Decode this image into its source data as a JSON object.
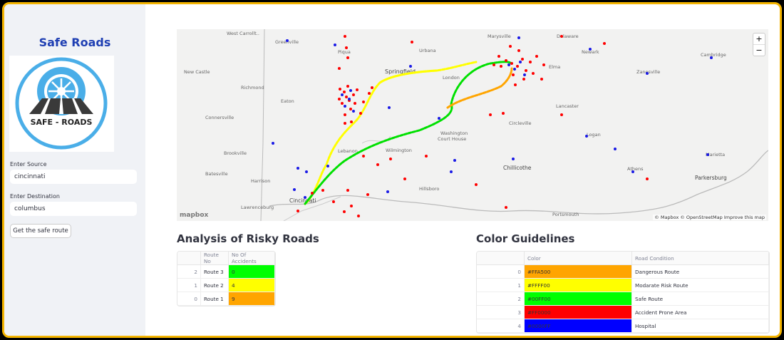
{
  "sidebar": {
    "title": "Safe Roads",
    "logo_text": "SAFE - ROADS",
    "source_label": "Enter Source",
    "source_value": "cincinnati",
    "destination_label": "Enter Destination",
    "destination_value": "columbus",
    "button_label": "Get the safe route"
  },
  "map": {
    "zoom_in": "+",
    "zoom_out": "−",
    "attribution": "© Mapbox © OpenStreetMap  Improve this map",
    "logo": "mapbox",
    "places": {
      "wc": "West Carrollt..",
      "greenville": "Greenville",
      "piqua": "Piqua",
      "urbana": "Urbana",
      "marysville": "Marysville",
      "delaware": "Delaware",
      "newark": "Newark",
      "zanesville": "Zanesville",
      "cambridge": "Cambridge",
      "springfield": "Springfield",
      "london": "London",
      "elma": "Elma",
      "newcastle": "New Castle",
      "richmond": "Richmond",
      "eaton": "Eaton",
      "lancaster": "Lancaster",
      "connersville": "Connersville",
      "washington": "Washington",
      "courthouse": "Court House",
      "circleville": "Circleville",
      "logan": "Logan",
      "brookville": "Brookville",
      "lebanon": "Lebanon",
      "wilmington": "Wilmington",
      "marietta": "Marietta",
      "batesville": "Batesville",
      "chillicothe": "Chillicothe",
      "athens": "Athens",
      "parkersburg": "Parkersburg",
      "harrison": "Harrison",
      "lawrenceburg": "Lawrenceburg",
      "cincinnati": "Cincinnati",
      "hillsboro": "Hillsboro",
      "portsmouth": "Portsmouth"
    }
  },
  "risk": {
    "title": "Analysis of Risky Roads",
    "columns": [
      "",
      "Route No",
      "No Of Accidents"
    ],
    "rows": [
      {
        "idx": "2",
        "route": "Route 3",
        "accidents": "0",
        "color": "#00FF00"
      },
      {
        "idx": "1",
        "route": "Route 2",
        "accidents": "4",
        "color": "#FFFF00"
      },
      {
        "idx": "0",
        "route": "Route 1",
        "accidents": "9",
        "color": "#FFA500"
      }
    ]
  },
  "guide": {
    "title": "Color Guidelines",
    "columns": [
      "",
      "Color",
      "Road Condition"
    ],
    "rows": [
      {
        "idx": "0",
        "color": "#FFA500",
        "condition": "Dangerous Route"
      },
      {
        "idx": "1",
        "color": "#FFFF00",
        "condition": "Modarate Risk Route"
      },
      {
        "idx": "2",
        "color": "#00FF00",
        "condition": "Safe Route"
      },
      {
        "idx": "3",
        "color": "#FF0000",
        "condition": "Accident Prone Area"
      },
      {
        "idx": "4",
        "color": "#0000FF",
        "condition": "Hospital"
      }
    ]
  }
}
